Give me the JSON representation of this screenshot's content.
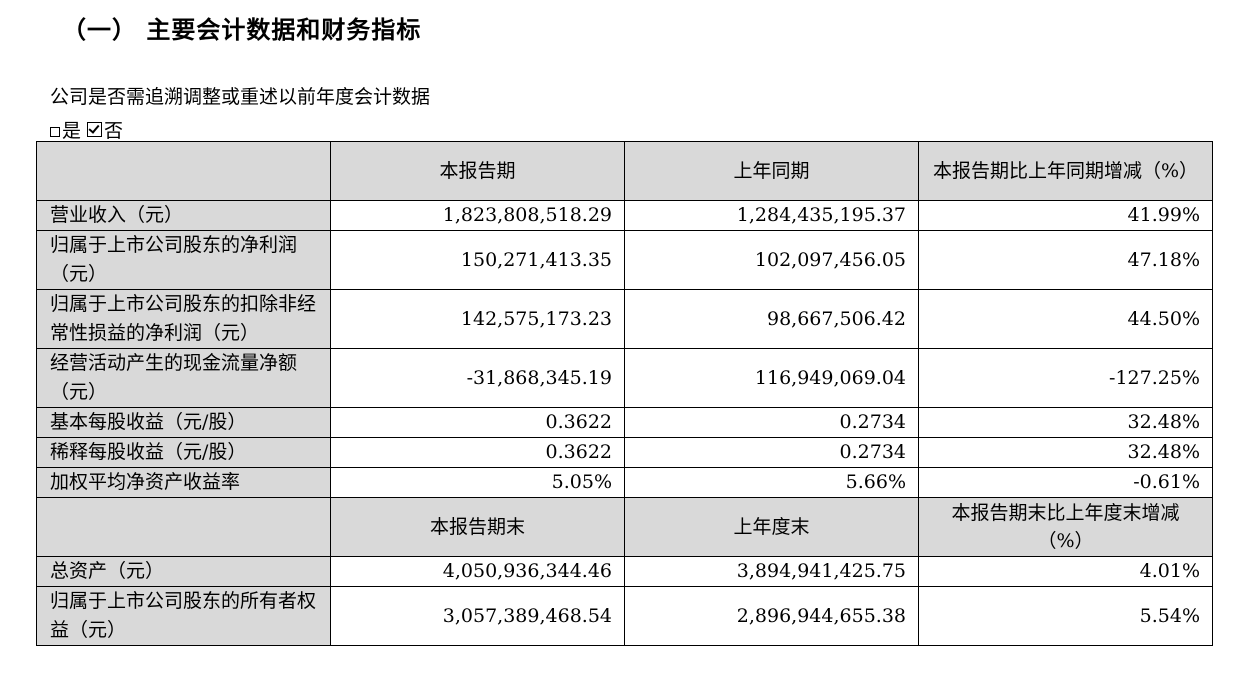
{
  "heading": "（一） 主要会计数据和财务指标",
  "question": "公司是否需追溯调整或重述以前年度会计数据",
  "answer": {
    "option_yes": "是",
    "option_no": "否",
    "selected": "否"
  },
  "table": {
    "header1": [
      "",
      "本报告期",
      "上年同期",
      "本报告期比上年同期增减（%）"
    ],
    "rows1": [
      {
        "label": "营业收入（元）",
        "current": "1,823,808,518.29",
        "previous": "1,284,435,195.37",
        "change": "41.99%"
      },
      {
        "label": "归属于上市公司股东的净利润（元）",
        "current": "150,271,413.35",
        "previous": "102,097,456.05",
        "change": "47.18%"
      },
      {
        "label": "归属于上市公司股东的扣除非经常性损益的净利润（元）",
        "current": "142,575,173.23",
        "previous": "98,667,506.42",
        "change": "44.50%"
      },
      {
        "label": "经营活动产生的现金流量净额（元）",
        "current": "-31,868,345.19",
        "previous": "116,949,069.04",
        "change": "-127.25%"
      },
      {
        "label": "基本每股收益（元/股）",
        "current": "0.3622",
        "previous": "0.2734",
        "change": "32.48%"
      },
      {
        "label": "稀释每股收益（元/股）",
        "current": "0.3622",
        "previous": "0.2734",
        "change": "32.48%"
      },
      {
        "label": "加权平均净资产收益率",
        "current": "5.05%",
        "previous": "5.66%",
        "change": "-0.61%"
      }
    ],
    "header2": [
      "",
      "本报告期末",
      "上年度末",
      "本报告期末比上年度末增减（%）"
    ],
    "rows2": [
      {
        "label": "总资产（元）",
        "current": "4,050,936,344.46",
        "previous": "3,894,941,425.75",
        "change": "4.01%"
      },
      {
        "label": "归属于上市公司股东的所有者权益（元）",
        "current": "3,057,389,468.54",
        "previous": "2,896,944,655.38",
        "change": "5.54%"
      }
    ]
  }
}
